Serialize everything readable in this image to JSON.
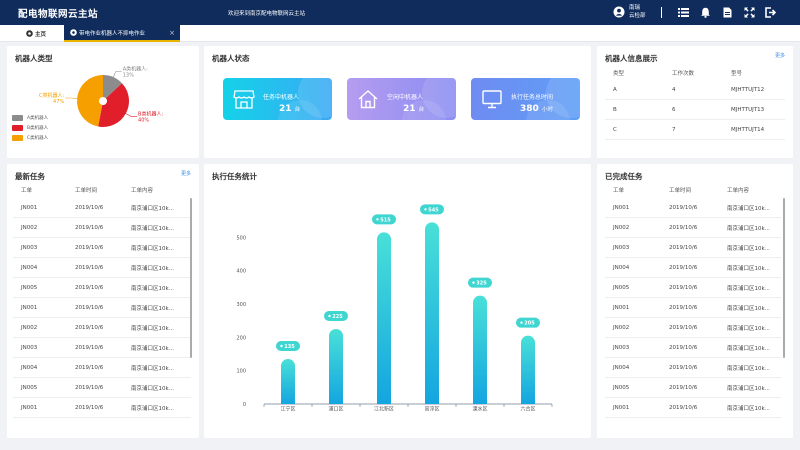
{
  "header": {
    "app_title": "配电物联网云主站",
    "welcome": "欢迎来到南京配电物联网云主站",
    "user_line1": "南瑞",
    "user_line2": "云检部"
  },
  "tabs": [
    {
      "label": "主页"
    },
    {
      "label": "带电作业机器人不抑电作业"
    }
  ],
  "robot_type": {
    "title": "机器人类型",
    "slices": [
      {
        "name": "A类机器人",
        "label": "A类机器人:",
        "percent": 13,
        "percent_text": "13%",
        "color": "#8c8c8c"
      },
      {
        "name": "B类机器人",
        "label": "B类机器人:",
        "percent": 40,
        "percent_text": "40%",
        "color": "#e01f2b"
      },
      {
        "name": "C类机器人",
        "label": "C类机器人:",
        "percent": 47,
        "percent_text": "47%",
        "color": "#f5a000"
      }
    ]
  },
  "robot_status": {
    "title": "机器人状态",
    "cards": [
      {
        "label": "任务中机器人",
        "value": "21",
        "unit": "台",
        "from": "#14d2e8",
        "to": "#3aa9f5"
      },
      {
        "label": "空闲中机器人",
        "value": "21",
        "unit": "台",
        "from": "#b59cf0",
        "to": "#8a8df2"
      },
      {
        "label": "执行任务总时间",
        "value": "380",
        "unit": "小时",
        "from": "#6f8bf2",
        "to": "#5e9ff5"
      }
    ]
  },
  "robot_info": {
    "title": "机器人信息展示",
    "more": "更多",
    "headers": [
      "类型",
      "工作次数",
      "型号"
    ],
    "rows": [
      [
        "A",
        "4",
        "MJHTTUJT12"
      ],
      [
        "B",
        "6",
        "MJHTTUJT13"
      ],
      [
        "C",
        "7",
        "MJHTTUJT14"
      ]
    ]
  },
  "latest_tasks": {
    "title": "最新任务",
    "more": "更多",
    "headers": [
      "工单",
      "工单时间",
      "工单内容"
    ],
    "rows": [
      [
        "JN001",
        "2019/10/6",
        "南京浦口区10k..."
      ],
      [
        "JN002",
        "2019/10/6",
        "南京浦口区10k..."
      ],
      [
        "JN003",
        "2019/10/6",
        "南京浦口区10k..."
      ],
      [
        "JN004",
        "2019/10/6",
        "南京浦口区10k..."
      ],
      [
        "JN005",
        "2019/10/6",
        "南京浦口区10k..."
      ],
      [
        "JN001",
        "2019/10/6",
        "南京浦口区10k..."
      ],
      [
        "JN002",
        "2019/10/6",
        "南京浦口区10k..."
      ],
      [
        "JN003",
        "2019/10/6",
        "南京浦口区10k..."
      ],
      [
        "JN004",
        "2019/10/6",
        "南京浦口区10k..."
      ],
      [
        "JN005",
        "2019/10/6",
        "南京浦口区10k..."
      ],
      [
        "JN001",
        "2019/10/6",
        "南京浦口区10k..."
      ]
    ]
  },
  "completed_tasks": {
    "title": "已完成任务",
    "headers": [
      "工单",
      "工单时间",
      "工单内容"
    ],
    "rows": [
      [
        "JN001",
        "2019/10/6",
        "南京浦口区10k..."
      ],
      [
        "JN002",
        "2019/10/6",
        "南京浦口区10k..."
      ],
      [
        "JN003",
        "2019/10/6",
        "南京浦口区10k..."
      ],
      [
        "JN004",
        "2019/10/6",
        "南京浦口区10k..."
      ],
      [
        "JN005",
        "2019/10/6",
        "南京浦口区10k..."
      ],
      [
        "JN001",
        "2019/10/6",
        "南京浦口区10k..."
      ],
      [
        "JN002",
        "2019/10/6",
        "南京浦口区10k..."
      ],
      [
        "JN003",
        "2019/10/6",
        "南京浦口区10k..."
      ],
      [
        "JN004",
        "2019/10/6",
        "南京浦口区10k..."
      ],
      [
        "JN005",
        "2019/10/6",
        "南京浦口区10k..."
      ],
      [
        "JN001",
        "2019/10/6",
        "南京浦口区10k..."
      ]
    ]
  },
  "task_stats": {
    "title": "执行任务统计"
  },
  "chart_data": {
    "type": "bar",
    "categories": [
      "江宁区",
      "浦口区",
      "江北新区",
      "高淳区",
      "溧水区",
      "六合区"
    ],
    "values": [
      135,
      225,
      515,
      545,
      325,
      205
    ],
    "value_labels": [
      "135",
      "225",
      "515",
      "545",
      "325",
      "205"
    ],
    "yticks": [
      "0",
      "100",
      "200",
      "300",
      "400",
      "500"
    ],
    "ylim": [
      0,
      600
    ],
    "grid": false,
    "bar_color_top": "#49e0d8",
    "bar_color_bottom": "#14a5e0"
  }
}
